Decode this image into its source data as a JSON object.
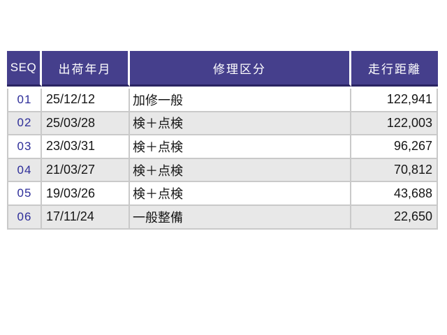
{
  "table": {
    "title": "repair-history",
    "headers": [
      "SEQ",
      "出荷年月",
      "修理区分",
      "走行距離"
    ],
    "rows": [
      {
        "seq": "01",
        "date": "25/12/12",
        "category": "加修一般",
        "distance": "122,941"
      },
      {
        "seq": "02",
        "date": "25/03/28",
        "category": "検＋点検",
        "distance": "122,003"
      },
      {
        "seq": "03",
        "date": "23/03/31",
        "category": "検＋点検",
        "distance": "96,267"
      },
      {
        "seq": "04",
        "date": "21/03/27",
        "category": "検＋点検",
        "distance": "70,812"
      },
      {
        "seq": "05",
        "date": "19/03/26",
        "category": "検＋点検",
        "distance": "43,688"
      },
      {
        "seq": "06",
        "date": "17/11/24",
        "category": "一般整備",
        "distance": "22,650"
      }
    ],
    "colors": {
      "header_bg": "#453F8C",
      "header_text": "#FFFFFF",
      "header_underline": "#2A2462",
      "seq_text": "#2D2D99",
      "body_text": "#161616",
      "stripe_bg": "#E8E8E8",
      "grid_line": "#C9C9C9",
      "page_bg": "#FFFFFF"
    }
  }
}
